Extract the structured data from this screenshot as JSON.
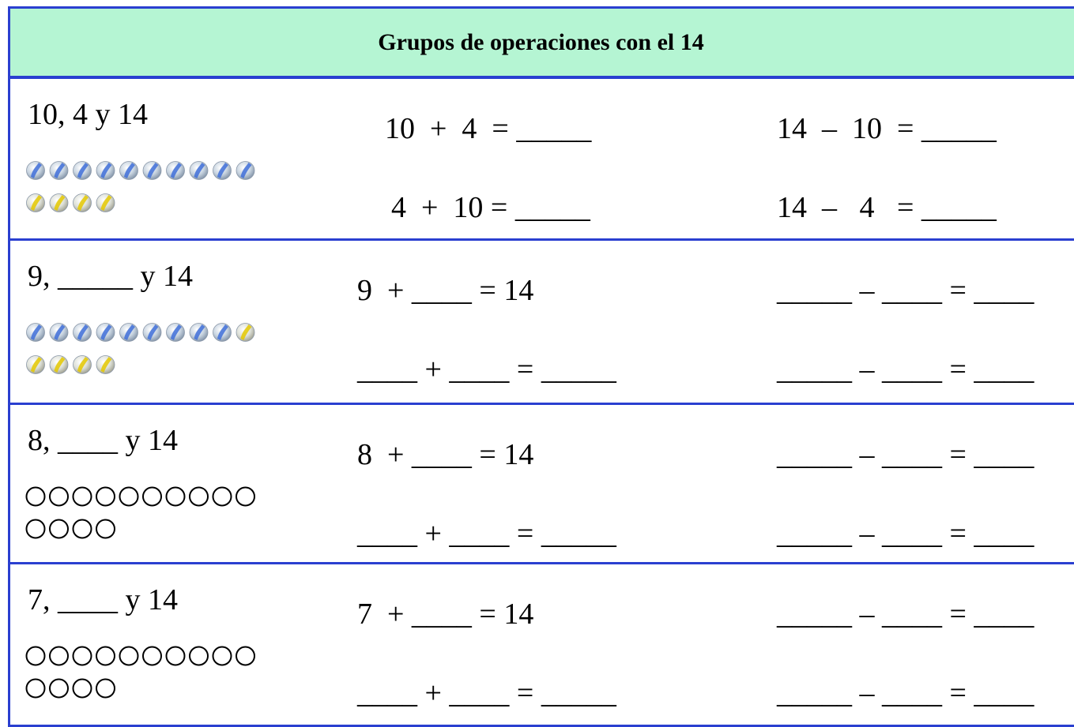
{
  "header": {
    "title": "Grupos de operaciones con el 14"
  },
  "rows": [
    {
      "label": "10, 4 y 14",
      "equations": [
        "10  +  4  = _____",
        "4  +  10 = _____",
        "14  –  10  = _____",
        "14  –   4   = _____"
      ]
    },
    {
      "label": "9, _____ y 14",
      "equations": [
        "9  + ____ = 14",
        "____ + ____ = _____",
        "_____ – ____ = ____",
        "_____ – ____ = ____"
      ]
    },
    {
      "label": "8, ____ y 14",
      "equations": [
        "8  + ____ = 14",
        "____ + ____ = _____",
        "_____ – ____ = ____",
        "_____ – ____ = ____"
      ]
    },
    {
      "label": "7, ____ y 14",
      "equations": [
        "7  + ____ = 14",
        "____ + ____ = _____",
        "_____ – ____ = ____",
        "_____ – ____ = ____"
      ]
    }
  ]
}
